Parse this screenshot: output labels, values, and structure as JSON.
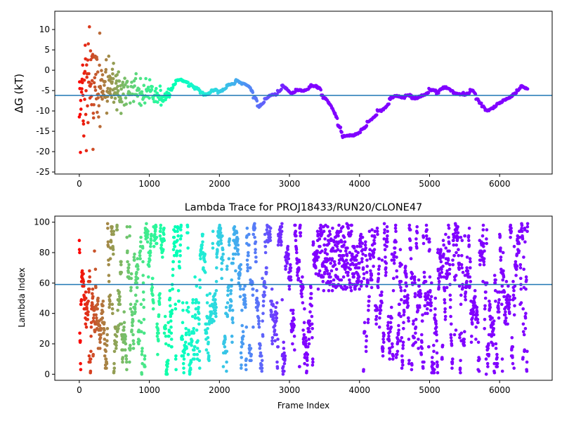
{
  "chart_data": [
    {
      "type": "scatter",
      "title": "",
      "xlabel": "",
      "ylabel": "ΔG (kT)",
      "xlim": [
        -350,
        6750
      ],
      "ylim": [
        -25.5,
        14.5
      ],
      "xticks": [
        0,
        1000,
        2000,
        3000,
        4000,
        5000,
        6000
      ],
      "yticks": [
        -25,
        -20,
        -15,
        -10,
        -5,
        0,
        5,
        10
      ],
      "hline": -6.2,
      "hline_color": "#1f77b4",
      "n_frames": 6400,
      "colormap": "rainbow (red at frame 0 → violet at later frames)",
      "grid": false,
      "trend": {
        "x": [
          0,
          100,
          200,
          300,
          400,
          500,
          600,
          700,
          800,
          900,
          1000,
          1100,
          1200,
          1300,
          1400,
          1500,
          1600,
          1700,
          1800,
          1900,
          2000,
          2100,
          2200,
          2300,
          2400,
          2500,
          2550,
          2600,
          2700,
          2800,
          2900,
          3000,
          3100,
          3200,
          3300,
          3400,
          3500,
          3600,
          3700,
          3750,
          3800,
          3900,
          4000,
          4100,
          4200,
          4300,
          4400,
          4500,
          4600,
          4700,
          4800,
          4900,
          5000,
          5100,
          5200,
          5300,
          5400,
          5500,
          5600,
          5700,
          5800,
          5900,
          6000,
          6100,
          6200,
          6300,
          6400
        ],
        "y": [
          -4,
          -3,
          -4,
          -3,
          -4,
          -4,
          -5,
          -4,
          -5,
          -6,
          -5,
          -6,
          -7,
          -5,
          -2,
          -3,
          -4,
          -5,
          -6,
          -5,
          -5,
          -4,
          -3,
          -3,
          -4,
          -7,
          -9,
          -8,
          -6,
          -6,
          -4,
          -6,
          -5,
          -5,
          -4,
          -4,
          -7,
          -10,
          -14,
          -16,
          -16,
          -16,
          -15,
          -13,
          -11,
          -10,
          -8,
          -6,
          -7,
          -6,
          -7,
          -6,
          -5,
          -5,
          -4,
          -5,
          -6,
          -6,
          -5,
          -8,
          -10,
          -9,
          -8,
          -7,
          -6,
          -4,
          -5
        ],
        "spread": [
          10,
          10,
          10,
          8,
          6,
          5,
          4,
          3,
          3,
          2.5,
          2,
          2,
          1.8,
          1.5,
          1.2,
          1.2,
          1,
          1,
          1,
          1,
          0.8,
          0.8,
          0.8,
          0.8,
          0.6,
          0.6,
          0.6,
          0.6,
          0.5,
          0.5,
          0.5,
          0.5,
          0.5,
          0.5,
          0.5,
          0.5,
          0.5,
          0.5,
          0.5,
          0.5,
          0.5,
          0.5,
          0.5,
          0.5,
          0.5,
          0.5,
          0.5,
          0.5,
          0.5,
          0.5,
          0.5,
          0.5,
          0.5,
          0.5,
          0.5,
          0.5,
          0.5,
          0.5,
          0.5,
          0.5,
          0.5,
          0.5,
          0.5,
          0.5,
          0.5,
          0.5,
          0.5
        ]
      }
    },
    {
      "type": "scatter",
      "title": "Lambda Trace for PROJ18433/RUN20/CLONE47",
      "xlabel": "Frame Index",
      "ylabel": "Lambda Index",
      "xlim": [
        -350,
        6750
      ],
      "ylim": [
        -4,
        104
      ],
      "xticks": [
        0,
        1000,
        2000,
        3000,
        4000,
        5000,
        6000
      ],
      "yticks": [
        0,
        20,
        40,
        60,
        80,
        100
      ],
      "hline": 59,
      "hline_color": "#1f77b4",
      "n_points": 2600,
      "lambda_range": [
        0,
        99
      ],
      "colormap": "rainbow (red at frame 0 → violet at later frames)",
      "grid": false,
      "high_lambda_window": {
        "x_range": [
          3400,
          3900
        ],
        "y_range": [
          55,
          99
        ]
      }
    }
  ]
}
